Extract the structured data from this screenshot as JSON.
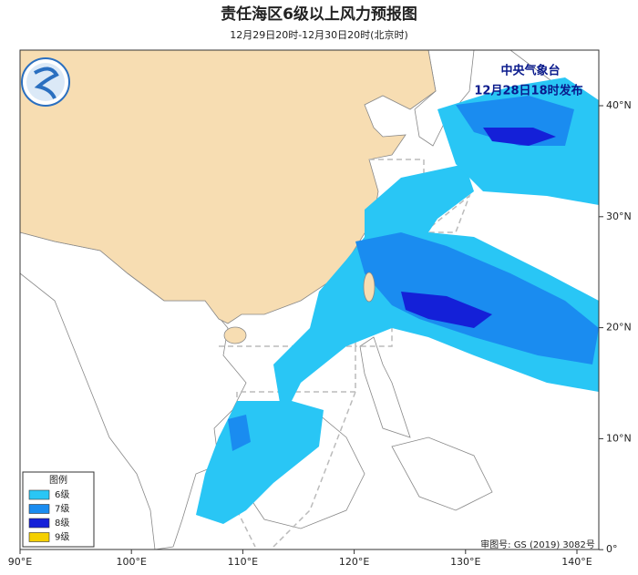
{
  "map": {
    "title": "责任海区6级以上风力预报图",
    "subtitle": "12月29日20时-12月30日20时(北京时)",
    "agency": "中央气象台",
    "issue_time": "12月28日18时发布",
    "legend": {
      "title": "图例",
      "items": [
        {
          "label": "6级",
          "color": "#29c6f5"
        },
        {
          "label": "7级",
          "color": "#1a8cf0"
        },
        {
          "label": "8级",
          "color": "#1420d8"
        },
        {
          "label": "9级",
          "color": "#f5d000"
        }
      ]
    },
    "x_labels": [
      "90°E",
      "100°E",
      "110°E",
      "120°E",
      "130°E",
      "140°E"
    ],
    "y_labels": [
      "40°N",
      "30°N",
      "20°N",
      "10°N",
      "0°"
    ],
    "review_number": "审图号: GS (2019) 3082号"
  }
}
